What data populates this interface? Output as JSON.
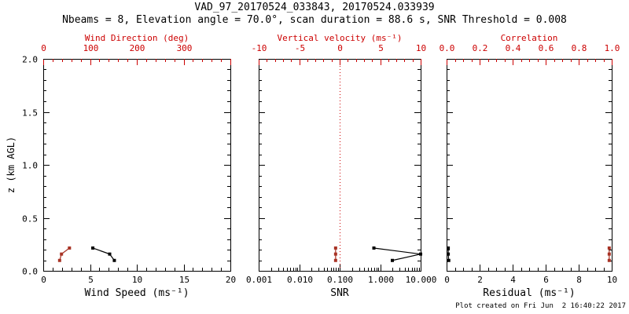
{
  "title": "VAD_97_20170524_033843, 20170524.033939",
  "subtitle": "Nbeams = 8, Elevation angle = 70.0°, scan duration = 88.6 s, SNR Threshold = 0.008",
  "footer": "Plot created on Fri Jun  2 16:40:22 2017",
  "colors": {
    "axis_red": "#cc0000",
    "data_red": "#a83325",
    "black": "#000000",
    "background": "#ffffff"
  },
  "y_axis": {
    "label": "z (km AGL)",
    "lim": [
      0,
      2
    ],
    "major_ticks": [
      0.0,
      0.5,
      1.0,
      1.5,
      2.0
    ],
    "tick_labels": [
      "0.0",
      "0.5",
      "1.0",
      "1.5",
      "2.0"
    ],
    "minor_step": 0.1
  },
  "chart_data": [
    {
      "name": "wind-panel",
      "type": "scatter",
      "bottom_axis": {
        "label": "Wind Speed (ms⁻¹)",
        "lim": [
          0,
          20
        ],
        "scale": "linear",
        "ticks": [
          0,
          5,
          10,
          15,
          20
        ],
        "tick_labels": [
          "0",
          "5",
          "10",
          "15",
          "20"
        ],
        "minor_step": 1
      },
      "top_axis": {
        "label": "Wind Direction (deg)",
        "lim": [
          0,
          400
        ],
        "scale": "linear",
        "ticks": [
          0,
          100,
          200,
          300,
          400
        ],
        "tick_labels": [
          "0",
          "100",
          "200",
          "300",
          ""
        ],
        "minor_step": 20
      },
      "series": [
        {
          "name": "wind-speed",
          "axis": "bottom",
          "color": "#000000",
          "points": [
            {
              "z": 0.098,
              "v": 7.6
            },
            {
              "z": 0.158,
              "v": 7.1
            },
            {
              "z": 0.215,
              "v": 5.3
            }
          ]
        },
        {
          "name": "wind-direction",
          "axis": "top",
          "color": "#a83325",
          "points": [
            {
              "z": 0.098,
              "v": 35
            },
            {
              "z": 0.158,
              "v": 39
            },
            {
              "z": 0.215,
              "v": 56
            }
          ]
        }
      ]
    },
    {
      "name": "snr-panel",
      "type": "scatter",
      "bottom_axis": {
        "label": "SNR",
        "lim": [
          0.001,
          10
        ],
        "scale": "log",
        "ticks": [
          0.001,
          0.01,
          0.1,
          1,
          10
        ],
        "tick_labels": [
          "0.001",
          "0.010",
          "0.100",
          "1.000",
          "10.000"
        ]
      },
      "top_axis": {
        "label": "Vertical velocity (ms⁻¹)",
        "lim": [
          -10,
          10
        ],
        "scale": "linear",
        "ticks": [
          -10,
          -5,
          0,
          5,
          10
        ],
        "tick_labels": [
          "-10",
          "-5",
          "0",
          "5",
          "10"
        ],
        "minor_step": 1
      },
      "ref_line": {
        "axis": "top",
        "value": 0,
        "style": "dotted"
      },
      "series": [
        {
          "name": "snr",
          "axis": "bottom",
          "color": "#000000",
          "points": [
            {
              "z": 0.098,
              "v": 2.0
            },
            {
              "z": 0.158,
              "v": 10.0
            },
            {
              "z": 0.215,
              "v": 0.7
            }
          ]
        },
        {
          "name": "vertical-velocity",
          "axis": "top",
          "color": "#a83325",
          "points": [
            {
              "z": 0.098,
              "v": -0.5
            },
            {
              "z": 0.158,
              "v": -0.5
            },
            {
              "z": 0.215,
              "v": -0.5
            }
          ]
        }
      ]
    },
    {
      "name": "residual-panel",
      "type": "scatter",
      "bottom_axis": {
        "label": "Residual (ms⁻¹)",
        "lim": [
          0,
          10
        ],
        "scale": "linear",
        "ticks": [
          0,
          2,
          4,
          6,
          8,
          10
        ],
        "tick_labels": [
          "0",
          "2",
          "4",
          "6",
          "8",
          "10"
        ],
        "minor_step": 0.5
      },
      "top_axis": {
        "label": "Correlation",
        "lim": [
          0,
          1
        ],
        "scale": "linear",
        "ticks": [
          0,
          0.2,
          0.4,
          0.6,
          0.8,
          1
        ],
        "tick_labels": [
          "0.0",
          "0.2",
          "0.4",
          "0.6",
          "0.8",
          "1.0"
        ],
        "minor_step": 0.05
      },
      "series": [
        {
          "name": "residual",
          "axis": "bottom",
          "color": "#000000",
          "points": [
            {
              "z": 0.098,
              "v": 0.13
            },
            {
              "z": 0.158,
              "v": 0.1
            },
            {
              "z": 0.215,
              "v": 0.1
            }
          ]
        },
        {
          "name": "correlation",
          "axis": "top",
          "color": "#a83325",
          "points": [
            {
              "z": 0.098,
              "v": 0.985
            },
            {
              "z": 0.158,
              "v": 0.985
            },
            {
              "z": 0.215,
              "v": 0.985
            }
          ]
        }
      ]
    }
  ]
}
